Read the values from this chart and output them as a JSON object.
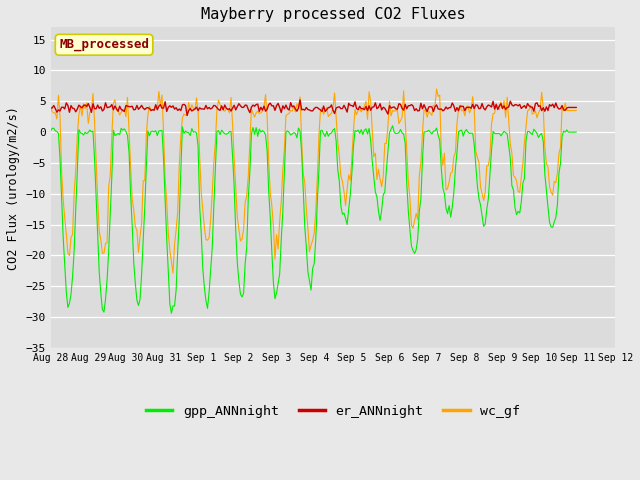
{
  "title": "Mayberry processed CO2 Fluxes",
  "ylabel": "CO2 Flux (urology/m2/s)",
  "ylim": [
    -35,
    17
  ],
  "yticks": [
    -35,
    -30,
    -25,
    -20,
    -15,
    -10,
    -5,
    0,
    5,
    10,
    15
  ],
  "background_color": "#e8e8e8",
  "plot_bg_color": "#dcdcdc",
  "legend_label": "MB_processed",
  "legend_text_color": "#8b0000",
  "legend_box_color": "#ffffd0",
  "line_colors": {
    "gpp": "#00ee00",
    "er": "#cc0000",
    "wc": "#ffa500"
  },
  "legend_entries": [
    "gpp_ANNnight",
    "er_ANNnight",
    "wc_gf"
  ],
  "legend_colors": [
    "#00ee00",
    "#cc0000",
    "#ffa500"
  ],
  "n_points": 336,
  "seed": 42
}
